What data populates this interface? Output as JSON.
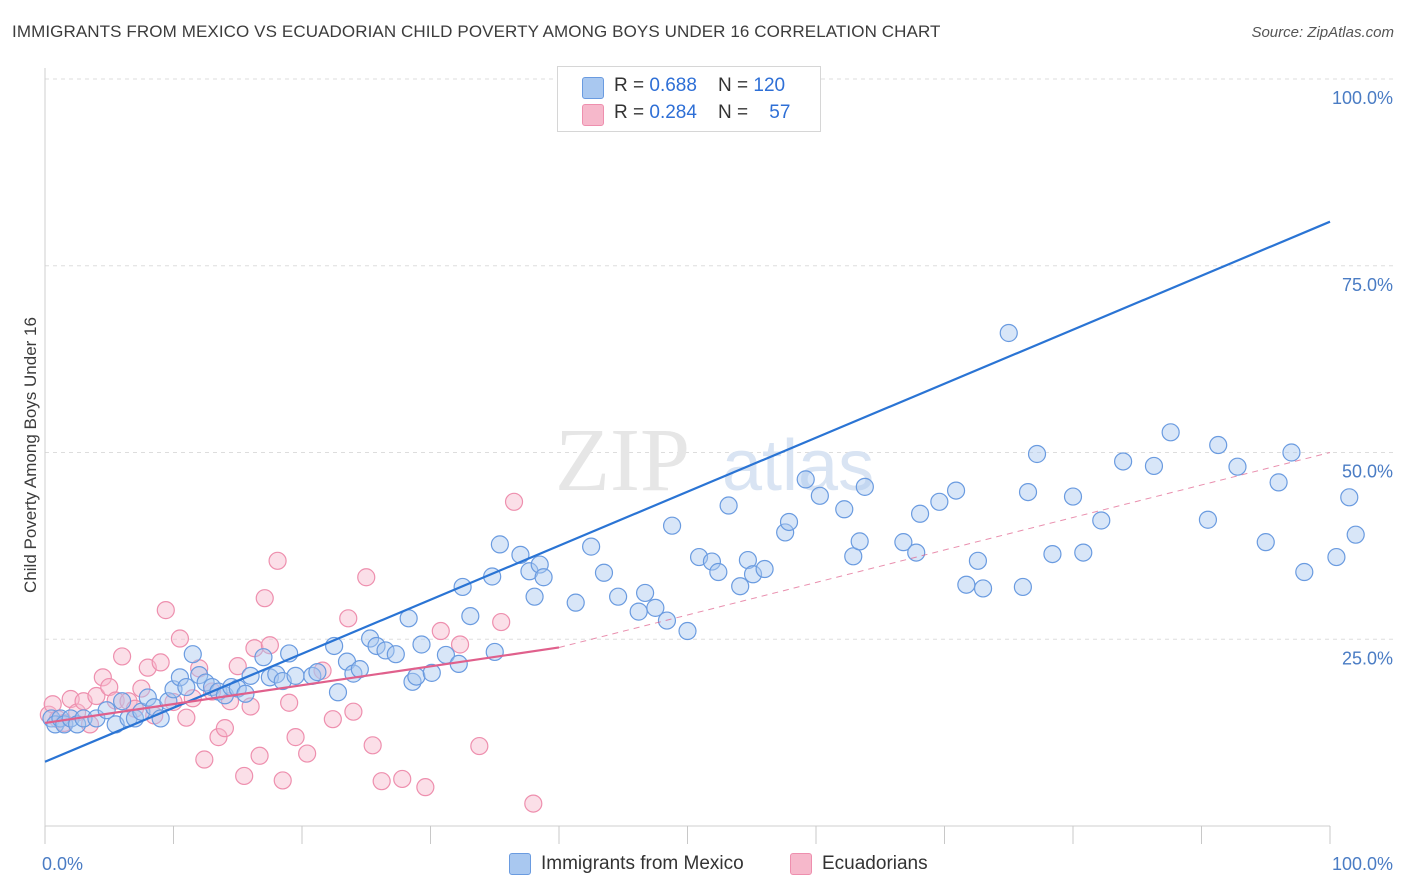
{
  "title": "IMMIGRANTS FROM MEXICO VS ECUADORIAN CHILD POVERTY AMONG BOYS UNDER 16 CORRELATION CHART",
  "source": "Source: ZipAtlas.com",
  "watermark": "ZIPatlas",
  "colors": {
    "blue_fill": "#a9c8f0",
    "blue_stroke": "#6a9be0",
    "blue_line": "#2a74d4",
    "pink_fill": "#f6b8cb",
    "pink_stroke": "#ee8fae",
    "pink_line": "#e0608c",
    "tick_text": "#4a7cc4",
    "grid": "#dddddd"
  },
  "legend": {
    "rows": [
      {
        "r_label": "R = ",
        "r_value": "0.688",
        "n_label": "N = ",
        "n_value": "120"
      },
      {
        "r_label": "R = ",
        "r_value": "0.284",
        "n_label": "N = ",
        "n_value": "57"
      }
    ]
  },
  "bottom_legend": {
    "series1": "Immigrants from Mexico",
    "series2": "Ecuadorians"
  },
  "chart_data": {
    "type": "scatter",
    "title": "IMMIGRANTS FROM MEXICO VS ECUADORIAN CHILD POVERTY AMONG BOYS UNDER 16 CORRELATION CHART",
    "xlabel": "",
    "ylabel": "Child Poverty Among Boys Under 16",
    "xlim": [
      0,
      100
    ],
    "ylim": [
      0,
      100
    ],
    "x_tick_labels": [
      "0.0%",
      "100.0%"
    ],
    "y_tick_labels": [
      "25.0%",
      "50.0%",
      "75.0%",
      "100.0%"
    ],
    "y_ticks": [
      25,
      50,
      75,
      100
    ],
    "grid": true,
    "legend_position": "top-center",
    "series": [
      {
        "name": "Immigrants from Mexico",
        "R": 0.688,
        "N": 120,
        "trend": {
          "x": [
            0,
            100
          ],
          "y": [
            8.6,
            80.9
          ]
        },
        "points": [
          [
            0.5,
            14.4
          ],
          [
            0.8,
            13.6
          ],
          [
            1.2,
            14.4
          ],
          [
            1.5,
            13.6
          ],
          [
            2,
            14.4
          ],
          [
            2.5,
            13.6
          ],
          [
            3,
            14.4
          ],
          [
            4,
            14.4
          ],
          [
            4.8,
            15.5
          ],
          [
            5.5,
            13.6
          ],
          [
            6,
            16.7
          ],
          [
            6.5,
            14.4
          ],
          [
            7,
            14.4
          ],
          [
            7.5,
            15.3
          ],
          [
            8,
            17.2
          ],
          [
            8.5,
            15.9
          ],
          [
            9,
            14.4
          ],
          [
            9.6,
            16.7
          ],
          [
            10,
            18.3
          ],
          [
            10.5,
            19.9
          ],
          [
            11,
            18.6
          ],
          [
            11.5,
            23.0
          ],
          [
            12,
            20.2
          ],
          [
            12.5,
            19.2
          ],
          [
            13,
            18.6
          ],
          [
            13.5,
            18.0
          ],
          [
            14,
            17.5
          ],
          [
            14.5,
            18.6
          ],
          [
            15,
            18.4
          ],
          [
            15.6,
            17.7
          ],
          [
            16,
            20.1
          ],
          [
            17,
            22.6
          ],
          [
            17.5,
            19.9
          ],
          [
            18,
            20.3
          ],
          [
            18.5,
            19.4
          ],
          [
            19,
            23.1
          ],
          [
            19.5,
            20.1
          ],
          [
            20.8,
            20.1
          ],
          [
            21.2,
            20.6
          ],
          [
            22.5,
            24.1
          ],
          [
            22.8,
            17.9
          ],
          [
            23.5,
            22.0
          ],
          [
            24,
            20.4
          ],
          [
            24.5,
            21.0
          ],
          [
            25.3,
            25.1
          ],
          [
            25.8,
            24.1
          ],
          [
            26.5,
            23.5
          ],
          [
            27.3,
            23.0
          ],
          [
            28.3,
            27.8
          ],
          [
            28.6,
            19.3
          ],
          [
            28.9,
            20.0
          ],
          [
            29.3,
            24.3
          ],
          [
            30.1,
            20.5
          ],
          [
            31.2,
            22.9
          ],
          [
            32.2,
            21.7
          ],
          [
            32.5,
            32.0
          ],
          [
            33.1,
            28.1
          ],
          [
            34.8,
            33.4
          ],
          [
            35.0,
            23.3
          ],
          [
            35.4,
            37.7
          ],
          [
            37.0,
            36.3
          ],
          [
            37.7,
            34.1
          ],
          [
            38.1,
            30.7
          ],
          [
            38.5,
            35.0
          ],
          [
            38.8,
            33.3
          ],
          [
            41.3,
            29.9
          ],
          [
            42.5,
            37.4
          ],
          [
            43.5,
            33.9
          ],
          [
            44.6,
            30.7
          ],
          [
            46.2,
            28.7
          ],
          [
            46.7,
            31.2
          ],
          [
            47.5,
            29.2
          ],
          [
            48.4,
            27.5
          ],
          [
            48.8,
            40.2
          ],
          [
            50.0,
            26.1
          ],
          [
            50.9,
            36.0
          ],
          [
            51.9,
            35.4
          ],
          [
            52.4,
            34.0
          ],
          [
            53.2,
            42.9
          ],
          [
            54.1,
            32.1
          ],
          [
            54.7,
            35.6
          ],
          [
            55.1,
            33.7
          ],
          [
            56.0,
            34.4
          ],
          [
            57.6,
            39.3
          ],
          [
            57.9,
            40.7
          ],
          [
            59.2,
            46.4
          ],
          [
            60.3,
            44.2
          ],
          [
            62.2,
            42.4
          ],
          [
            62.9,
            36.1
          ],
          [
            63.4,
            38.1
          ],
          [
            63.8,
            45.4
          ],
          [
            66.8,
            38.0
          ],
          [
            67.8,
            36.6
          ],
          [
            68.1,
            41.8
          ],
          [
            69.6,
            43.4
          ],
          [
            70.9,
            44.9
          ],
          [
            71.7,
            32.3
          ],
          [
            72.6,
            35.5
          ],
          [
            73.0,
            31.8
          ],
          [
            75.0,
            66.0
          ],
          [
            76.1,
            32.0
          ],
          [
            76.5,
            44.7
          ],
          [
            77.2,
            49.8
          ],
          [
            78.4,
            36.4
          ],
          [
            80.0,
            44.1
          ],
          [
            80.8,
            36.6
          ],
          [
            82.2,
            40.9
          ],
          [
            83.9,
            48.8
          ],
          [
            86.3,
            48.2
          ],
          [
            87.6,
            52.7
          ],
          [
            91.3,
            51.0
          ],
          [
            92.8,
            48.1
          ],
          [
            96.0,
            46.0
          ],
          [
            98.0,
            34.0
          ],
          [
            90.5,
            41.0
          ],
          [
            95.0,
            38.0
          ],
          [
            97.0,
            50.0
          ],
          [
            101.5,
            44.0
          ],
          [
            102.0,
            39.0
          ],
          [
            100.5,
            36.0
          ]
        ]
      },
      {
        "name": "Ecuadorians",
        "R": 0.284,
        "N": 57,
        "trend": {
          "x": [
            0,
            40
          ],
          "y": [
            13.8,
            23.9
          ]
        },
        "trend_extension": {
          "x": [
            40,
            100
          ],
          "y": [
            23.9,
            50.0
          ]
        },
        "points": [
          [
            0.3,
            14.9
          ],
          [
            0.6,
            16.3
          ],
          [
            1,
            14.3
          ],
          [
            1.5,
            13.8
          ],
          [
            2,
            17.0
          ],
          [
            2.5,
            15.2
          ],
          [
            3,
            16.7
          ],
          [
            3.5,
            13.6
          ],
          [
            4,
            17.4
          ],
          [
            4.5,
            19.9
          ],
          [
            5,
            18.6
          ],
          [
            5.5,
            16.8
          ],
          [
            6,
            22.7
          ],
          [
            6.5,
            16.7
          ],
          [
            7,
            15.7
          ],
          [
            7.5,
            18.4
          ],
          [
            8,
            21.2
          ],
          [
            8.5,
            14.8
          ],
          [
            9,
            21.9
          ],
          [
            9.4,
            28.9
          ],
          [
            10,
            16.6
          ],
          [
            10.5,
            25.1
          ],
          [
            11,
            14.5
          ],
          [
            11.5,
            17.1
          ],
          [
            12,
            21.1
          ],
          [
            12.4,
            8.9
          ],
          [
            13,
            18.0
          ],
          [
            13.5,
            11.9
          ],
          [
            14,
            13.1
          ],
          [
            14.4,
            16.7
          ],
          [
            15,
            21.4
          ],
          [
            15.5,
            6.7
          ],
          [
            16,
            16.0
          ],
          [
            16.3,
            23.8
          ],
          [
            16.7,
            9.4
          ],
          [
            17.1,
            30.5
          ],
          [
            17.5,
            24.2
          ],
          [
            18.1,
            35.5
          ],
          [
            18.5,
            6.1
          ],
          [
            19,
            16.5
          ],
          [
            19.5,
            11.9
          ],
          [
            20.4,
            9.7
          ],
          [
            21.6,
            20.8
          ],
          [
            22.4,
            14.3
          ],
          [
            23.6,
            27.8
          ],
          [
            24.0,
            15.3
          ],
          [
            25.0,
            33.3
          ],
          [
            25.5,
            10.8
          ],
          [
            26.2,
            6.0
          ],
          [
            27.8,
            6.3
          ],
          [
            29.6,
            5.2
          ],
          [
            30.8,
            26.1
          ],
          [
            32.3,
            24.3
          ],
          [
            33.8,
            10.7
          ],
          [
            35.5,
            27.3
          ],
          [
            36.5,
            43.4
          ],
          [
            38.0,
            3.0
          ]
        ]
      }
    ]
  }
}
